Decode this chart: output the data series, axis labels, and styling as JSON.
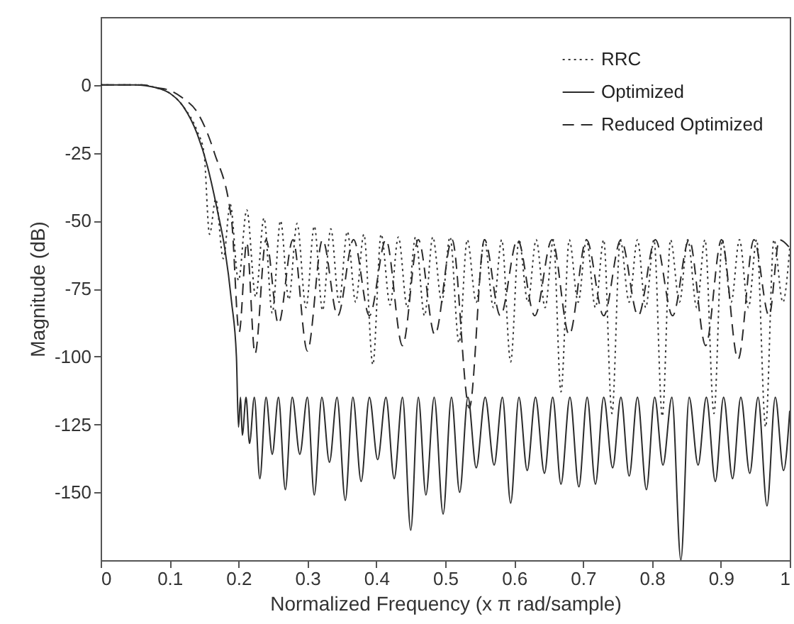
{
  "chart_data": {
    "type": "line",
    "xlabel": "Normalized Frequency (x π rad/sample)",
    "ylabel": "Magnitude (dB)",
    "xlim": [
      0,
      1
    ],
    "xticks": [
      0,
      0.1,
      0.2,
      0.3,
      0.4,
      0.5,
      0.6,
      0.7,
      0.8,
      0.9,
      1
    ],
    "ylim": [
      -175,
      25
    ],
    "yticks": [
      -150,
      -125,
      -100,
      -75,
      -50,
      -25,
      0
    ],
    "grid": false,
    "legend": "top right",
    "marker": "none",
    "series": [
      {
        "name": "RRC",
        "color": "#3a3a3a",
        "line_style": "dotted",
        "x": [
          0,
          0.06,
          0.08,
          0.1,
          0.12,
          0.14,
          0.15,
          0.158,
          0.167,
          0.178,
          0.188,
          0.2,
          0.212,
          0.225,
          0.237,
          0.249,
          0.261,
          0.273,
          0.285,
          0.298,
          0.31,
          0.322,
          0.334,
          0.346,
          0.358,
          0.37,
          0.382,
          0.395,
          0.407,
          0.42,
          0.432,
          0.445,
          0.457,
          0.47,
          0.482,
          0.495,
          0.507,
          0.52,
          0.532,
          0.545,
          0.557,
          0.57,
          0.582,
          0.595,
          0.607,
          0.62,
          0.632,
          0.645,
          0.657,
          0.668,
          0.68,
          0.693,
          0.705,
          0.718,
          0.73,
          0.742,
          0.754,
          0.767,
          0.779,
          0.791,
          0.803,
          0.815,
          0.827,
          0.84,
          0.852,
          0.865,
          0.877,
          0.89,
          0.902,
          0.915,
          0.927,
          0.94,
          0.952,
          0.965,
          0.977,
          0.99,
          1
        ],
        "values": [
          0,
          0,
          -1,
          -3,
          -8,
          -17,
          -25,
          -55,
          -42,
          -64,
          -44,
          -72,
          -46,
          -78,
          -49,
          -84,
          -50,
          -79,
          -51,
          -82,
          -52,
          -83,
          -53,
          -80,
          -54,
          -80,
          -55,
          -103,
          -55,
          -81,
          -56,
          -82,
          -56,
          -85,
          -56,
          -80,
          -56,
          -95,
          -57,
          -80,
          -57,
          -82,
          -57,
          -102,
          -57,
          -80,
          -57,
          -82,
          -57,
          -113,
          -57,
          -80,
          -57,
          -82,
          -57,
          -121,
          -57,
          -80,
          -57,
          -82,
          -57,
          -122,
          -57,
          -80,
          -57,
          -82,
          -57,
          -121,
          -57,
          -80,
          -57,
          -82,
          -57,
          -126,
          -57,
          -80,
          -60
        ]
      },
      {
        "name": "Optimized",
        "color": "#2a2a2a",
        "line_style": "solid",
        "x": [
          0,
          0.05,
          0.08,
          0.1,
          0.12,
          0.14,
          0.155,
          0.17,
          0.18,
          0.19,
          0.197,
          0.2,
          0.203,
          0.2055,
          0.211,
          0.216,
          0.223,
          0.231,
          0.24,
          0.249,
          0.258,
          0.268,
          0.278,
          0.289,
          0.3,
          0.31,
          0.321,
          0.332,
          0.343,
          0.355,
          0.366,
          0.378,
          0.39,
          0.402,
          0.414,
          0.426,
          0.438,
          0.45,
          0.461,
          0.472,
          0.484,
          0.497,
          0.509,
          0.521,
          0.533,
          0.545,
          0.558,
          0.571,
          0.583,
          0.595,
          0.607,
          0.619,
          0.631,
          0.644,
          0.656,
          0.668,
          0.681,
          0.694,
          0.706,
          0.718,
          0.73,
          0.743,
          0.755,
          0.767,
          0.779,
          0.792,
          0.804,
          0.816,
          0.829,
          0.842,
          0.854,
          0.867,
          0.879,
          0.892,
          0.904,
          0.917,
          0.929,
          0.942,
          0.954,
          0.967,
          0.979,
          0.991,
          1
        ],
        "values": [
          0,
          0,
          -1,
          -3,
          -8,
          -18,
          -30,
          -47,
          -60,
          -80,
          -100,
          -126,
          -115,
          -129,
          -115,
          -132,
          -115,
          -145,
          -115,
          -136,
          -115,
          -149,
          -115,
          -136,
          -115,
          -151,
          -115,
          -139,
          -115,
          -153,
          -115,
          -146,
          -115,
          -138,
          -115,
          -145,
          -115,
          -164,
          -115,
          -151,
          -115,
          -158,
          -115,
          -150,
          -115,
          -141,
          -115,
          -140,
          -115,
          -154,
          -115,
          -142,
          -115,
          -143,
          -115,
          -147,
          -115,
          -148,
          -115,
          -147,
          -115,
          -141,
          -115,
          -144,
          -115,
          -149,
          -115,
          -140,
          -115,
          -175,
          -115,
          -140,
          -115,
          -146,
          -115,
          -145,
          -115,
          -143,
          -115,
          -155,
          -115,
          -142,
          -120
        ]
      },
      {
        "name": "Reduced Optimized",
        "color": "#2a2a2a",
        "line_style": "dashed",
        "x": [
          0,
          0.06,
          0.08,
          0.1,
          0.12,
          0.14,
          0.165,
          0.19,
          0.201,
          0.212,
          0.224,
          0.24,
          0.258,
          0.279,
          0.3,
          0.322,
          0.344,
          0.367,
          0.39,
          0.414,
          0.438,
          0.461,
          0.485,
          0.51,
          0.535,
          0.557,
          0.58,
          0.605,
          0.63,
          0.655,
          0.68,
          0.705,
          0.73,
          0.755,
          0.78,
          0.805,
          0.83,
          0.854,
          0.878,
          0.901,
          0.925,
          0.948,
          0.97,
          0.985,
          1
        ],
        "values": [
          0,
          0,
          -1,
          -2,
          -5,
          -10,
          -25,
          -50,
          -91,
          -58,
          -99,
          -57,
          -88,
          -57,
          -98,
          -57,
          -85,
          -57,
          -85,
          -57,
          -96,
          -57,
          -92,
          -57,
          -119,
          -57,
          -85,
          -57,
          -85,
          -57,
          -92,
          -57,
          -85,
          -57,
          -85,
          -57,
          -85,
          -57,
          -96,
          -57,
          -101,
          -57,
          -85,
          -57,
          -60
        ]
      }
    ]
  }
}
